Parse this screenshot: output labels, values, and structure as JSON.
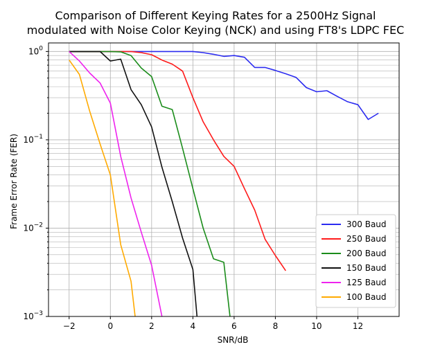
{
  "chart_data": {
    "type": "line",
    "title": "Comparison of Different Keying Rates for a 2500Hz Signal modulated with Noise Color Keying (NCK) and using FT8's LDPC FEC",
    "title_lines": [
      "Comparison of Different Keying Rates for a 2500Hz Signal",
      "modulated with Noise Color Keying (NCK) and using FT8's LDPC FEC"
    ],
    "xlabel": "SNR/dB",
    "ylabel": "Frame Error Rate (FER)",
    "xlim": [
      -3,
      14
    ],
    "ylim": [
      0.001,
      1.25
    ],
    "yscale": "log",
    "xticks": [
      -2,
      0,
      2,
      4,
      6,
      8,
      10,
      12
    ],
    "xtick_labels": [
      "−2",
      "0",
      "2",
      "4",
      "6",
      "8",
      "10",
      "12"
    ],
    "yticks": [
      {
        "value": 1,
        "base": "10",
        "exp": "0"
      },
      {
        "value": 0.1,
        "base": "10",
        "exp": "−1"
      },
      {
        "value": 0.01,
        "base": "10",
        "exp": "−2"
      },
      {
        "value": 0.001,
        "base": "10",
        "exp": "−3"
      }
    ],
    "grid": "both (major and minor)",
    "legend_position": "lower-right",
    "series": [
      {
        "name": "300 Baud",
        "color": "#2b2bf0",
        "x": [
          -2,
          -1.5,
          -1,
          -0.5,
          0,
          0.5,
          1,
          1.5,
          2,
          2.5,
          3,
          3.5,
          4,
          4.5,
          5,
          5.5,
          6,
          6.5,
          7,
          7.5,
          8,
          8.5,
          9,
          9.5,
          10,
          10.5,
          11,
          11.5,
          12,
          12.5,
          13
        ],
        "y": [
          1,
          1,
          1,
          1,
          1,
          1,
          1,
          1,
          1,
          1,
          1,
          1,
          1,
          0.97,
          0.93,
          0.88,
          0.9,
          0.86,
          0.66,
          0.66,
          0.61,
          0.56,
          0.51,
          0.39,
          0.35,
          0.36,
          0.31,
          0.27,
          0.25,
          0.17,
          0.2
        ]
      },
      {
        "name": "250 Baud",
        "color": "#ff1a1a",
        "x": [
          -2,
          -1,
          0,
          0.5,
          1,
          1.5,
          2,
          2.5,
          3,
          3.5,
          4,
          4.5,
          5,
          5.5,
          6,
          6.5,
          7,
          7.5,
          8,
          8.5
        ],
        "y": [
          1,
          1,
          1,
          1,
          1,
          0.97,
          0.92,
          0.8,
          0.72,
          0.6,
          0.3,
          0.16,
          0.1,
          0.065,
          0.05,
          0.028,
          0.016,
          0.0075,
          0.0049,
          0.0033
        ]
      },
      {
        "name": "200 Baud",
        "color": "#1a8c1a",
        "x": [
          -2,
          -1,
          0,
          0.5,
          1,
          1.5,
          2,
          2.5,
          3,
          3.5,
          4,
          4.5,
          5,
          5.5,
          5.8
        ],
        "y": [
          1,
          1,
          1,
          0.99,
          0.9,
          0.65,
          0.52,
          0.24,
          0.22,
          0.08,
          0.028,
          0.01,
          0.0045,
          0.0041,
          0.001
        ]
      },
      {
        "name": "150 Baud",
        "color": "#111111",
        "x": [
          -2,
          -1.5,
          -1,
          -0.5,
          0,
          0.5,
          1,
          1.5,
          2,
          2.5,
          3,
          3.5,
          4,
          4.2
        ],
        "y": [
          1,
          1,
          1,
          1,
          0.78,
          0.82,
          0.37,
          0.25,
          0.14,
          0.049,
          0.02,
          0.0077,
          0.0034,
          0.001
        ]
      },
      {
        "name": "125 Baud",
        "color": "#ee22ee",
        "x": [
          -2,
          -1.5,
          -1,
          -0.5,
          0,
          0.5,
          1,
          1.5,
          2,
          2.5
        ],
        "y": [
          1,
          0.78,
          0.57,
          0.44,
          0.26,
          0.065,
          0.022,
          0.009,
          0.0038,
          0.001
        ]
      },
      {
        "name": "100 Baud",
        "color": "#ffaa00",
        "x": [
          -2,
          -1.5,
          -1,
          -0.5,
          0,
          0.5,
          1,
          1.2
        ],
        "y": [
          0.8,
          0.55,
          0.21,
          0.09,
          0.04,
          0.0065,
          0.0025,
          0.001
        ]
      }
    ]
  }
}
